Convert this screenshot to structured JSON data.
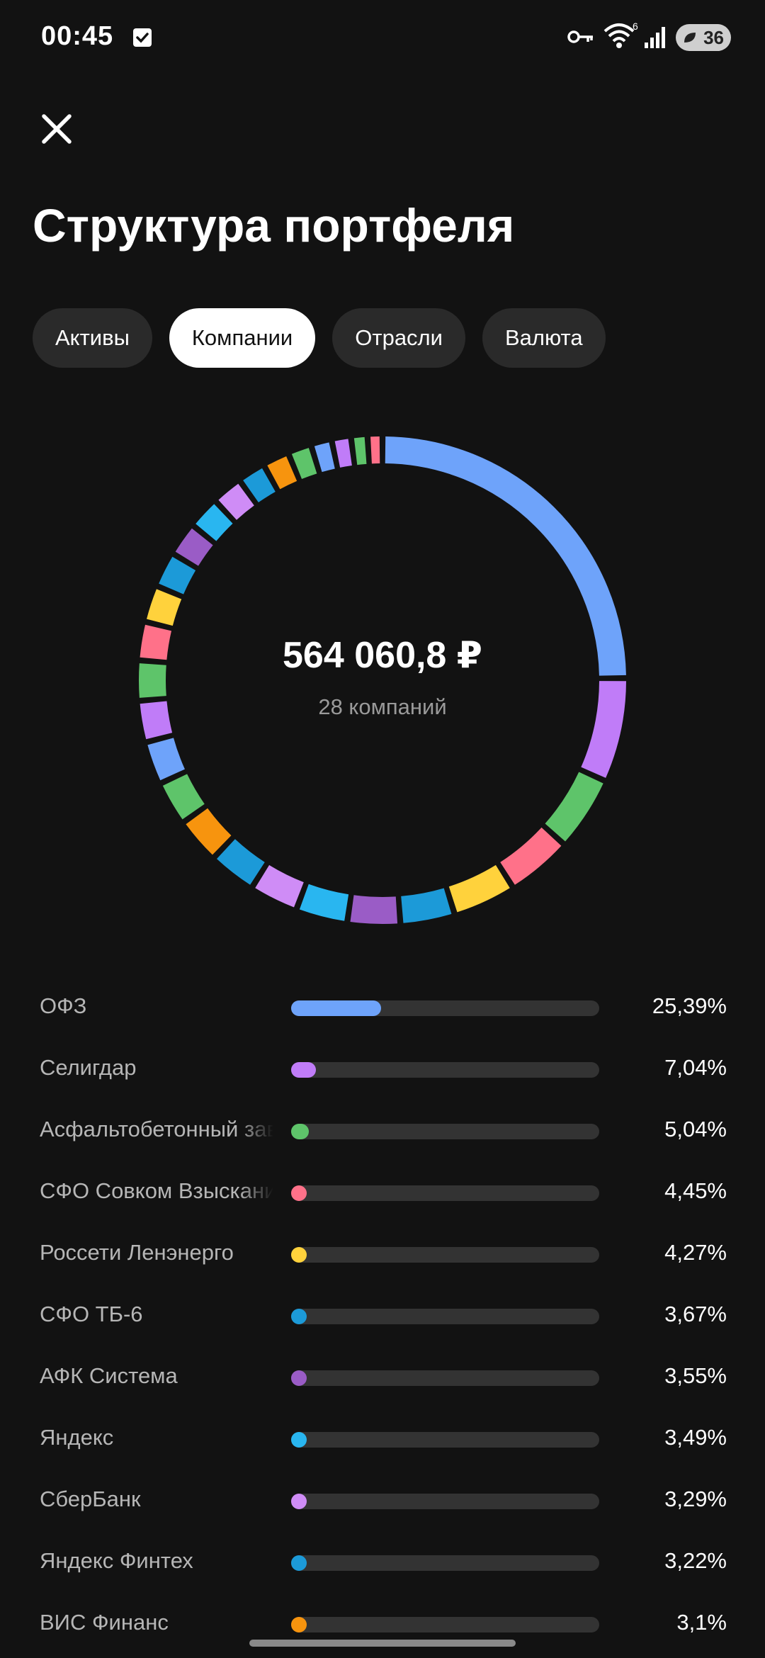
{
  "status": {
    "time": "00:45",
    "wifi_badge": "6",
    "battery": "36"
  },
  "page": {
    "title": "Структура портфеля"
  },
  "tabs": [
    {
      "label": "Активы",
      "active": false
    },
    {
      "label": "Компании",
      "active": true
    },
    {
      "label": "Отрасли",
      "active": false
    },
    {
      "label": "Валюта",
      "active": false
    }
  ],
  "summary": {
    "total": "564 060,8 ₽",
    "count": "28 компаний"
  },
  "colors": {
    "blue": "#6ea3fa",
    "violet": "#c07cf8",
    "green": "#5ec46a",
    "pink": "#ff7189",
    "yellow": "#ffd23c",
    "teal": "#1c9ad8",
    "purple": "#9a5cc6",
    "sky": "#29b6f0",
    "lilac": "#cf8cf6",
    "orange": "#f7940e"
  },
  "companies": [
    {
      "name": "ОФЗ",
      "percent": "25,39%",
      "share": 25.39,
      "color": "#6ea3fa"
    },
    {
      "name": "Селигдар",
      "percent": "7,04%",
      "share": 7.04,
      "color": "#c07cf8"
    },
    {
      "name": "Асфальтобетонный завод",
      "percent": "5,04%",
      "share": 5.04,
      "color": "#5ec46a"
    },
    {
      "name": "СФО Совком Взыскание",
      "percent": "4,45%",
      "share": 4.45,
      "color": "#ff7189"
    },
    {
      "name": "Россети Ленэнерго",
      "percent": "4,27%",
      "share": 4.27,
      "color": "#ffd23c"
    },
    {
      "name": "СФО ТБ-6",
      "percent": "3,67%",
      "share": 3.67,
      "color": "#1c9ad8"
    },
    {
      "name": "АФК Система",
      "percent": "3,55%",
      "share": 3.55,
      "color": "#9a5cc6"
    },
    {
      "name": "Яндекс",
      "percent": "3,49%",
      "share": 3.49,
      "color": "#29b6f0"
    },
    {
      "name": "СберБанк",
      "percent": "3,29%",
      "share": 3.29,
      "color": "#cf8cf6"
    },
    {
      "name": "Яндекс Финтех",
      "percent": "3,22%",
      "share": 3.22,
      "color": "#1c9ad8"
    },
    {
      "name": "ВИС Финанс",
      "percent": "3,1%",
      "share": 3.1,
      "color": "#f7940e"
    }
  ],
  "chart_data": {
    "type": "pie",
    "segments": [
      {
        "share": 25.39,
        "color": "#6ea3fa"
      },
      {
        "share": 7.04,
        "color": "#c07cf8"
      },
      {
        "share": 5.04,
        "color": "#5ec46a"
      },
      {
        "share": 4.45,
        "color": "#ff7189"
      },
      {
        "share": 4.27,
        "color": "#ffd23c"
      },
      {
        "share": 3.67,
        "color": "#1c9ad8"
      },
      {
        "share": 3.55,
        "color": "#9a5cc6"
      },
      {
        "share": 3.49,
        "color": "#29b6f0"
      },
      {
        "share": 3.29,
        "color": "#cf8cf6"
      },
      {
        "share": 3.22,
        "color": "#1c9ad8"
      },
      {
        "share": 3.1,
        "color": "#f7940e"
      },
      {
        "share": 3.0,
        "color": "#5ec46a"
      },
      {
        "share": 2.9,
        "color": "#6ea3fa"
      },
      {
        "share": 2.8,
        "color": "#c07cf8"
      },
      {
        "share": 2.7,
        "color": "#5ec46a"
      },
      {
        "share": 2.6,
        "color": "#ff7189"
      },
      {
        "share": 2.5,
        "color": "#ffd23c"
      },
      {
        "share": 2.4,
        "color": "#1c9ad8"
      },
      {
        "share": 2.3,
        "color": "#9a5cc6"
      },
      {
        "share": 2.2,
        "color": "#29b6f0"
      },
      {
        "share": 2.1,
        "color": "#cf8cf6"
      },
      {
        "share": 1.9,
        "color": "#1c9ad8"
      },
      {
        "share": 1.8,
        "color": "#f7940e"
      },
      {
        "share": 1.6,
        "color": "#5ec46a"
      },
      {
        "share": 1.4,
        "color": "#6ea3fa"
      },
      {
        "share": 1.3,
        "color": "#c07cf8"
      },
      {
        "share": 1.1,
        "color": "#5ec46a"
      },
      {
        "share": 1.0,
        "color": "#ff7189"
      }
    ]
  }
}
